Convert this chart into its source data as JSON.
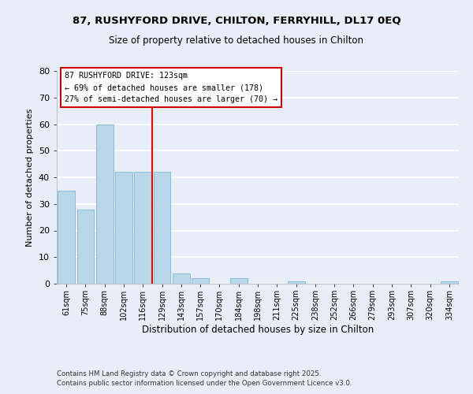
{
  "title_line1": "87, RUSHYFORD DRIVE, CHILTON, FERRYHILL, DL17 0EQ",
  "title_line2": "Size of property relative to detached houses in Chilton",
  "xlabel": "Distribution of detached houses by size in Chilton",
  "ylabel": "Number of detached properties",
  "categories": [
    "61sqm",
    "75sqm",
    "88sqm",
    "102sqm",
    "116sqm",
    "129sqm",
    "143sqm",
    "157sqm",
    "170sqm",
    "184sqm",
    "198sqm",
    "211sqm",
    "225sqm",
    "238sqm",
    "252sqm",
    "266sqm",
    "279sqm",
    "293sqm",
    "307sqm",
    "320sqm",
    "334sqm"
  ],
  "values": [
    35,
    28,
    60,
    42,
    42,
    42,
    4,
    2,
    0,
    2,
    0,
    0,
    1,
    0,
    0,
    0,
    0,
    0,
    0,
    0,
    1
  ],
  "bar_color": "#b8d8ea",
  "bar_edge_color": "#8bbcda",
  "vline_index": 5,
  "annotation_line1": "87 RUSHYFORD DRIVE: 123sqm",
  "annotation_line2": "← 69% of detached houses are smaller (178)",
  "annotation_line3": "27% of semi-detached houses are larger (70) →",
  "ylim": [
    0,
    80
  ],
  "yticks": [
    0,
    10,
    20,
    30,
    40,
    50,
    60,
    70,
    80
  ],
  "background_color": "#e8eef8",
  "grid_color": "#ffffff",
  "footer_line1": "Contains HM Land Registry data © Crown copyright and database right 2025.",
  "footer_line2": "Contains public sector information licensed under the Open Government Licence v3.0."
}
